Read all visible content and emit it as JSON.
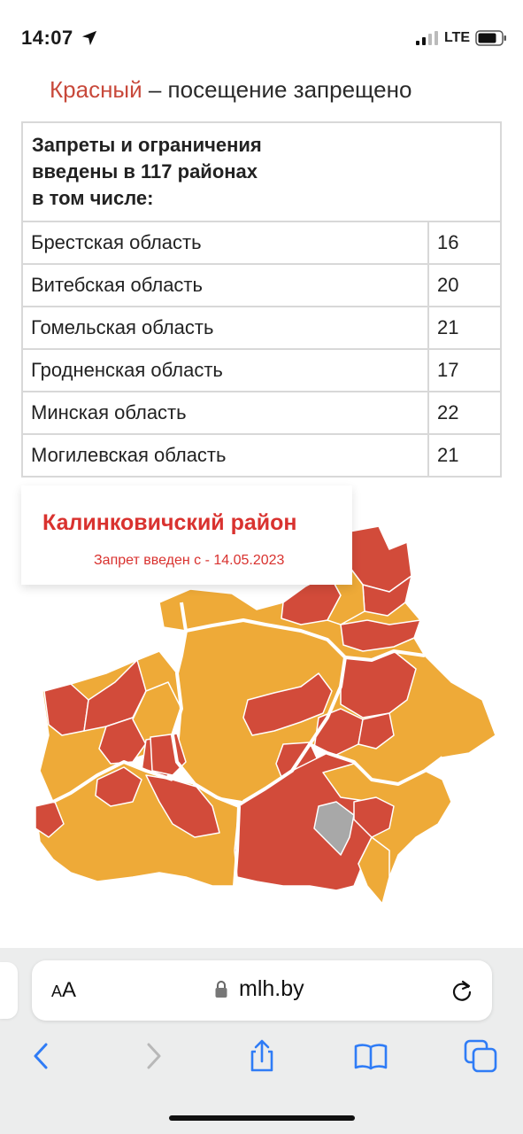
{
  "status_bar": {
    "time": "14:07",
    "network": "LTE"
  },
  "legend": {
    "color_word": "Красный",
    "text": " – посещение запрещено"
  },
  "table": {
    "header": [
      "Запреты и ограничения",
      "введены в 117 районах",
      "в том числе:"
    ],
    "rows": [
      {
        "region": "Брестская область",
        "count": "16"
      },
      {
        "region": "Витебская область",
        "count": "20"
      },
      {
        "region": "Гомельская область",
        "count": "21"
      },
      {
        "region": "Гродненская область",
        "count": "17"
      },
      {
        "region": "Минская область",
        "count": "22"
      },
      {
        "region": "Могилевская область",
        "count": "21"
      }
    ]
  },
  "tooltip": {
    "title": "Калинковичский район",
    "subtitle": "Запрет введен с - 14.05.2023"
  },
  "map_colors": {
    "banned": "#d24b3a",
    "restricted": "#eeaa38",
    "selected": "#a8a8a8",
    "border": "#ffffff"
  },
  "browser": {
    "text_size_label": "AA",
    "url": "mlh.by",
    "icons": [
      "lock-icon",
      "reload-icon",
      "back-icon",
      "forward-icon",
      "share-icon",
      "bookmarks-icon",
      "tabs-icon"
    ]
  }
}
